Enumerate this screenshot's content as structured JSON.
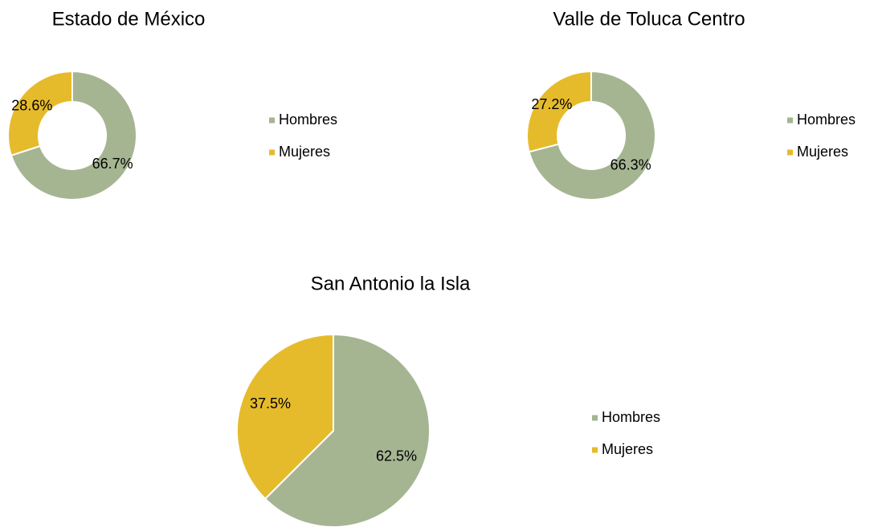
{
  "chart_data": [
    {
      "type": "donut",
      "title": "Estado de México",
      "categories": [
        "Hombres",
        "Mujeres"
      ],
      "values": [
        66.7,
        28.6
      ],
      "value_labels": [
        "66.7%",
        "28.6%"
      ],
      "colors": [
        "#a5b592",
        "#e6bb2b"
      ],
      "legend": "right"
    },
    {
      "type": "donut",
      "title": "Valle de Toluca Centro",
      "categories": [
        "Hombres",
        "Mujeres"
      ],
      "values": [
        66.3,
        27.2
      ],
      "value_labels": [
        "66.3%",
        "27.2%"
      ],
      "colors": [
        "#a5b592",
        "#e6bb2b"
      ],
      "legend": "right"
    },
    {
      "type": "pie",
      "title": "San Antonio la Isla",
      "categories": [
        "Hombres",
        "Mujeres"
      ],
      "values": [
        62.5,
        37.5
      ],
      "value_labels": [
        "62.5%",
        "37.5%"
      ],
      "colors": [
        "#a5b592",
        "#e6bb2b"
      ],
      "legend": "right"
    }
  ]
}
